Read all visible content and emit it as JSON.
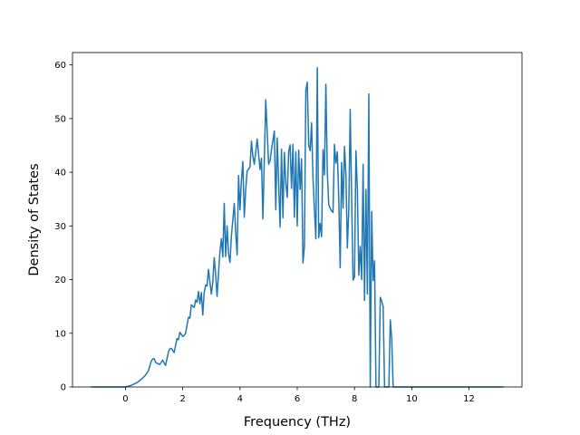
{
  "chart_data": {
    "type": "line",
    "title": "",
    "xlabel": "Frequency (THz)",
    "ylabel": "Density of States",
    "xlim": [
      -1.85,
      13.85
    ],
    "ylim": [
      0,
      62.3
    ],
    "xticks": [
      0,
      2,
      4,
      6,
      8,
      10,
      12
    ],
    "yticks": [
      0,
      10,
      20,
      30,
      40,
      50,
      60
    ],
    "grid": false,
    "legend": "none",
    "series": [
      {
        "color": "#1f77b4",
        "x": [
          -1.2,
          -0.9,
          -0.6,
          -0.3,
          0.0,
          0.2,
          0.4,
          0.55,
          0.7,
          0.8,
          0.9,
          0.95,
          1.0,
          1.05,
          1.1,
          1.2,
          1.3,
          1.4,
          1.5,
          1.55,
          1.6,
          1.7,
          1.8,
          1.85,
          1.9,
          2.0,
          2.05,
          2.1,
          2.2,
          2.25,
          2.3,
          2.4,
          2.45,
          2.5,
          2.55,
          2.6,
          2.65,
          2.7,
          2.75,
          2.8,
          2.85,
          2.9,
          3.0,
          3.05,
          3.1,
          3.15,
          3.2,
          3.3,
          3.35,
          3.4,
          3.45,
          3.5,
          3.55,
          3.6,
          3.65,
          3.7,
          3.8,
          3.85,
          3.9,
          3.95,
          4.0,
          4.05,
          4.1,
          4.15,
          4.2,
          4.25,
          4.3,
          4.35,
          4.4,
          4.45,
          4.5,
          4.6,
          4.7,
          4.75,
          4.8,
          4.9,
          5.0,
          5.05,
          5.1,
          5.2,
          5.25,
          5.3,
          5.4,
          5.45,
          5.5,
          5.55,
          5.6,
          5.65,
          5.7,
          5.75,
          5.8,
          5.85,
          5.9,
          5.95,
          6.0,
          6.05,
          6.1,
          6.15,
          6.2,
          6.25,
          6.3,
          6.35,
          6.4,
          6.45,
          6.5,
          6.55,
          6.6,
          6.65,
          6.7,
          6.75,
          6.8,
          6.85,
          6.9,
          6.95,
          7.0,
          7.05,
          7.1,
          7.15,
          7.2,
          7.25,
          7.3,
          7.35,
          7.4,
          7.45,
          7.5,
          7.55,
          7.6,
          7.65,
          7.7,
          7.75,
          7.8,
          7.85,
          7.9,
          7.95,
          8.0,
          8.05,
          8.1,
          8.15,
          8.2,
          8.25,
          8.3,
          8.35,
          8.4,
          8.45,
          8.5,
          8.55,
          8.6,
          8.65,
          8.7,
          8.75,
          8.8,
          8.85,
          8.9,
          8.95,
          9.0,
          9.05,
          9.1,
          9.15,
          9.2,
          9.25,
          9.3,
          9.35,
          9.4,
          9.45,
          9.5,
          9.55,
          9.6,
          9.65,
          9.7,
          9.75,
          9.8,
          9.85,
          9.9,
          9.95,
          10.0,
          10.05,
          10.1,
          10.15,
          10.2,
          10.25,
          10.3,
          10.35,
          10.4,
          10.45,
          10.5,
          10.55,
          10.6,
          10.7,
          10.8,
          10.85,
          10.9,
          10.95,
          11.0,
          11.1,
          11.3,
          11.5,
          11.7,
          11.8,
          11.85,
          11.9,
          11.95,
          12.0,
          12.2,
          12.6,
          13.0,
          13.2
        ],
        "y": [
          0,
          0,
          0,
          0,
          0,
          0.3,
          0.8,
          1.4,
          2.2,
          3.0,
          4.8,
          5.2,
          5.3,
          4.6,
          4.4,
          4.2,
          5.0,
          4.0,
          6.5,
          7.1,
          7.2,
          6.4,
          9.0,
          8.8,
          10.2,
          9.4,
          9.6,
          10.0,
          13.0,
          12.8,
          15.3,
          14.8,
          16.2,
          15.8,
          17.8,
          15.5,
          17.6,
          13.4,
          17.6,
          19.0,
          18.8,
          21.9,
          17.3,
          19.5,
          24.1,
          21.0,
          16.9,
          25.3,
          27.6,
          24.2,
          34.2,
          24.3,
          30.0,
          24.8,
          23.2,
          28.1,
          34.2,
          28.8,
          24.6,
          39.4,
          33.0,
          38.5,
          42.0,
          31.6,
          36.8,
          40.2,
          40.6,
          41.0,
          45.8,
          43.0,
          41.5,
          46.2,
          40.5,
          42.6,
          31.3,
          53.5,
          41.5,
          42.1,
          44.2,
          47.7,
          33.0,
          46.4,
          29.8,
          44.3,
          31.5,
          43.7,
          38.0,
          35.3,
          43.9,
          45.1,
          37.0,
          45.2,
          31.6,
          43.8,
          30.0,
          44.1,
          36.8,
          42.5,
          23.1,
          26.2,
          55.3,
          56.8,
          45.0,
          44.0,
          49.2,
          38.9,
          33.0,
          27.6,
          59.5,
          27.8,
          30.5,
          28.0,
          44.2,
          39.5,
          56.4,
          40.0,
          34.0,
          33.3,
          32.8,
          32.5,
          45.2,
          41.7,
          43.8,
          35.0,
          22.2,
          41.8,
          33.3,
          44.8,
          39.5,
          25.9,
          33.0,
          51.7,
          35.0,
          19.9,
          20.5,
          44.0,
          36.8,
          20.8,
          26.2,
          20.0,
          41.5,
          16.1,
          36.8,
          17.3,
          54.6,
          0,
          32.7,
          19.8,
          23.5,
          0,
          0,
          0,
          16.7,
          16.0,
          15.0,
          0,
          0,
          0,
          0,
          12.5,
          9.0,
          0,
          0,
          0,
          0,
          0,
          0,
          0,
          0,
          0,
          0,
          0,
          0,
          0,
          0,
          0,
          0,
          0,
          0,
          0,
          0,
          0,
          0,
          0,
          0,
          0,
          0,
          0,
          0,
          0,
          0,
          0,
          0,
          0,
          0,
          0,
          0,
          0,
          0,
          0,
          0,
          0,
          0,
          0,
          0,
          0
        ]
      }
    ]
  }
}
